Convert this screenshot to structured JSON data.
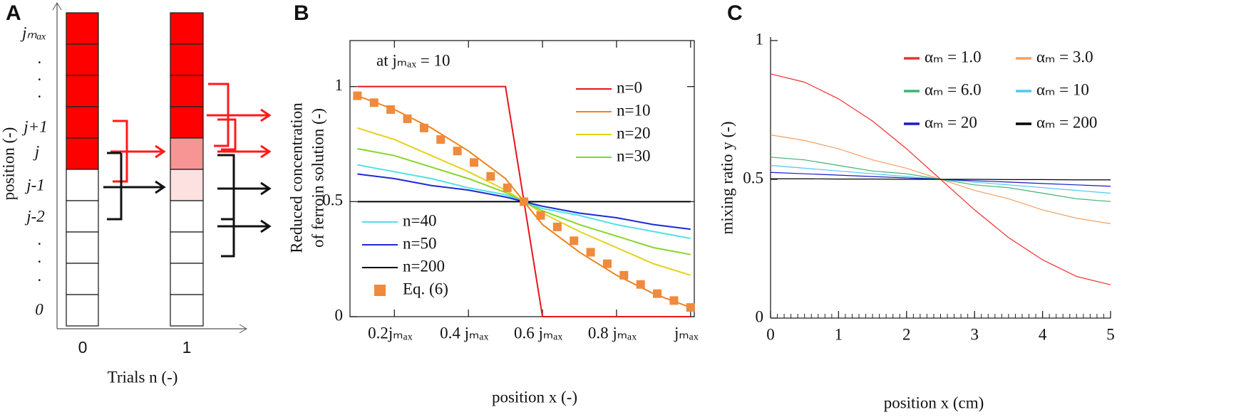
{
  "diagram": {
    "panel": "A",
    "y_labels": [
      "jₘₐₓ",
      "·",
      "·",
      "·",
      "j+1",
      "j",
      "j-1",
      "j-2",
      "·",
      "·",
      "·",
      "0"
    ],
    "y_axis_label": "position (-)",
    "x_labels": [
      "0",
      "1"
    ],
    "x_axis_label": "Trials n (-)"
  },
  "chart_data": [
    {
      "type": "line",
      "panel": "B",
      "annotation": "at jₘₐₓ = 10",
      "xlabel": "position x (-)",
      "ylabel": [
        "Reduced concentration",
        "of ferroin solution (-)"
      ],
      "xlim": [
        0.08,
        1.01
      ],
      "ylim": [
        0,
        1.2
      ],
      "xticks": [
        {
          "value": 0.2,
          "label": "0.2jₘₐₓ"
        },
        {
          "value": 0.4,
          "label": "0.4 jₘₐₓ"
        },
        {
          "value": 0.6,
          "label": "0.6 jₘₐₓ"
        },
        {
          "value": 0.8,
          "label": "0.8 jₘₐₓ"
        },
        {
          "value": 1.0,
          "label": "jₘₐₓ"
        }
      ],
      "yticks": [
        0,
        0.5,
        1
      ],
      "x": [
        0.1,
        0.2,
        0.3,
        0.4,
        0.5,
        0.6,
        0.7,
        0.8,
        0.9,
        1.0
      ],
      "series": [
        {
          "name": "n=0",
          "color": "#e8141b",
          "values": [
            1,
            1,
            1,
            1,
            1,
            0,
            0,
            0,
            0,
            0
          ]
        },
        {
          "name": "n=10",
          "color": "#f0821e",
          "values": [
            0.96,
            0.9,
            0.82,
            0.72,
            0.6,
            0.4,
            0.28,
            0.18,
            0.1,
            0.04
          ]
        },
        {
          "name": "n=20",
          "color": "#e4d21a",
          "values": [
            0.82,
            0.77,
            0.7,
            0.63,
            0.55,
            0.45,
            0.37,
            0.3,
            0.23,
            0.18
          ]
        },
        {
          "name": "n=30",
          "color": "#86d62a",
          "values": [
            0.73,
            0.7,
            0.65,
            0.6,
            0.54,
            0.46,
            0.4,
            0.35,
            0.3,
            0.27
          ]
        },
        {
          "name": "n=40",
          "color": "#4fe0e8",
          "values": [
            0.66,
            0.63,
            0.6,
            0.56,
            0.53,
            0.47,
            0.44,
            0.4,
            0.37,
            0.34
          ]
        },
        {
          "name": "n=50",
          "color": "#1a2ad6",
          "values": [
            0.62,
            0.6,
            0.57,
            0.55,
            0.52,
            0.48,
            0.45,
            0.43,
            0.4,
            0.38
          ]
        },
        {
          "name": "n=200",
          "color": "#000000",
          "values": [
            0.5,
            0.5,
            0.5,
            0.5,
            0.5,
            0.5,
            0.5,
            0.5,
            0.5,
            0.5
          ]
        },
        {
          "name": "Eq. (6)",
          "color": "#f08a3c",
          "marker": "square",
          "x": [
            0.1,
            0.145,
            0.19,
            0.235,
            0.28,
            0.325,
            0.37,
            0.415,
            0.46,
            0.505,
            0.55,
            0.595,
            0.64,
            0.685,
            0.73,
            0.775,
            0.82,
            0.865,
            0.91,
            0.955,
            1.0
          ],
          "values": [
            0.96,
            0.93,
            0.9,
            0.86,
            0.82,
            0.77,
            0.72,
            0.67,
            0.61,
            0.56,
            0.5,
            0.44,
            0.39,
            0.33,
            0.28,
            0.23,
            0.18,
            0.14,
            0.1,
            0.07,
            0.04
          ]
        }
      ]
    },
    {
      "type": "line",
      "panel": "C",
      "xlabel": "position x (cm)",
      "ylabel": [
        "mixing ratio y (-)"
      ],
      "xlim": [
        0,
        5
      ],
      "ylim": [
        0,
        1
      ],
      "xticks": [
        0,
        1,
        2,
        3,
        4,
        5
      ],
      "yticks": [
        0,
        0.5,
        1
      ],
      "x": [
        0,
        0.5,
        1,
        1.5,
        2,
        2.5,
        3,
        3.5,
        4,
        4.5,
        5
      ],
      "series": [
        {
          "name": "αₘ = 1.0",
          "color": "#f03030",
          "values": [
            0.88,
            0.85,
            0.79,
            0.71,
            0.61,
            0.5,
            0.39,
            0.29,
            0.21,
            0.15,
            0.12
          ]
        },
        {
          "name": "αₘ = 3.0",
          "color": "#f5a060",
          "values": [
            0.66,
            0.64,
            0.61,
            0.57,
            0.54,
            0.5,
            0.46,
            0.43,
            0.39,
            0.36,
            0.34
          ]
        },
        {
          "name": "αₘ = 6.0",
          "color": "#3cb371",
          "values": [
            0.58,
            0.57,
            0.55,
            0.53,
            0.52,
            0.5,
            0.48,
            0.47,
            0.45,
            0.43,
            0.42
          ]
        },
        {
          "name": "αₘ = 10",
          "color": "#4fc8f0",
          "values": [
            0.55,
            0.54,
            0.53,
            0.52,
            0.51,
            0.5,
            0.49,
            0.48,
            0.47,
            0.46,
            0.45
          ]
        },
        {
          "name": "αₘ = 20",
          "color": "#1a1ad0",
          "values": [
            0.525,
            0.52,
            0.515,
            0.51,
            0.505,
            0.5,
            0.495,
            0.49,
            0.485,
            0.48,
            0.475
          ]
        },
        {
          "name": "αₘ = 200",
          "color": "#000000",
          "values": [
            0.502,
            0.502,
            0.501,
            0.501,
            0.5,
            0.5,
            0.5,
            0.499,
            0.499,
            0.498,
            0.498
          ]
        }
      ]
    }
  ]
}
